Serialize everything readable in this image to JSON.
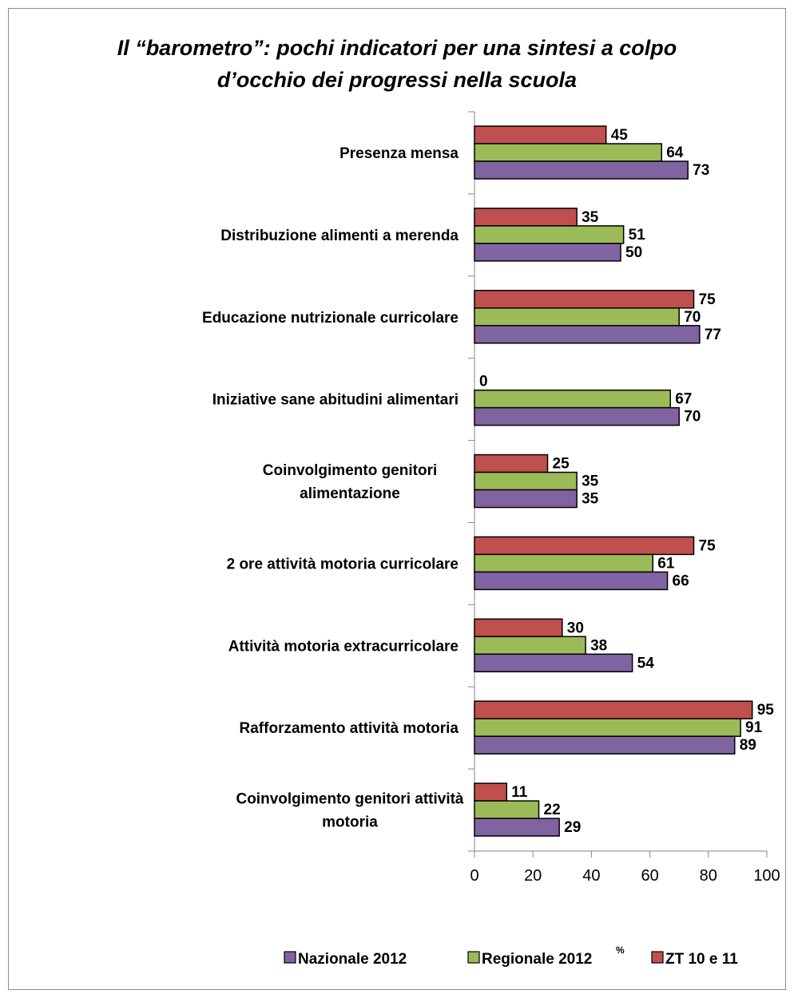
{
  "chart_data": {
    "type": "bar",
    "orientation": "horizontal",
    "title": "Il “barometro”: pochi indicatori per una sintesi a colpo d’occhio dei progressi nella scuola",
    "title_lines": [
      "Il “barometro”: pochi indicatori per una sintesi a colpo",
      "d’occhio dei progressi nella scuola"
    ],
    "categories": [
      "Presenza mensa",
      "Distribuzione alimenti a merenda",
      "Educazione nutrizionale curricolare",
      "Iniziative sane abitudini alimentari",
      "Coinvolgimento genitori alimentazione",
      "2 ore attività motoria curricolare",
      "Attività motoria extracurricolare",
      "Rafforzamento attività motoria",
      "Coinvolgimento genitori attività motoria"
    ],
    "category_lines": [
      [
        "Presenza mensa"
      ],
      [
        "Distribuzione alimenti a merenda"
      ],
      [
        "Educazione nutrizionale curricolare"
      ],
      [
        "Iniziative sane abitudini alimentari"
      ],
      [
        "Coinvolgimento genitori",
        "alimentazione"
      ],
      [
        "2 ore attività motoria curricolare"
      ],
      [
        "Attività motoria extracurricolare"
      ],
      [
        "Rafforzamento attività motoria"
      ],
      [
        "Coinvolgimento genitori attività",
        "motoria"
      ]
    ],
    "series": [
      {
        "name": "ZT 10 e 11",
        "color": "#c0504d",
        "values": [
          45,
          35,
          75,
          0,
          25,
          75,
          30,
          95,
          11
        ]
      },
      {
        "name": "Regionale 2012",
        "color": "#9bbb59",
        "values": [
          64,
          51,
          70,
          67,
          35,
          61,
          38,
          91,
          22
        ]
      },
      {
        "name": "Nazionale 2012",
        "color": "#8064a2",
        "values": [
          73,
          50,
          77,
          70,
          35,
          66,
          54,
          89,
          29
        ]
      }
    ],
    "xlim": [
      0,
      100
    ],
    "xticks": [
      0,
      20,
      40,
      60,
      80,
      100
    ],
    "grid": false,
    "legend": {
      "position": "bottom",
      "order": [
        "Nazionale 2012",
        "Regionale 2012",
        "ZT 10 e 11"
      ],
      "superscript": {
        "series": "Regionale 2012",
        "text": "%"
      }
    }
  }
}
